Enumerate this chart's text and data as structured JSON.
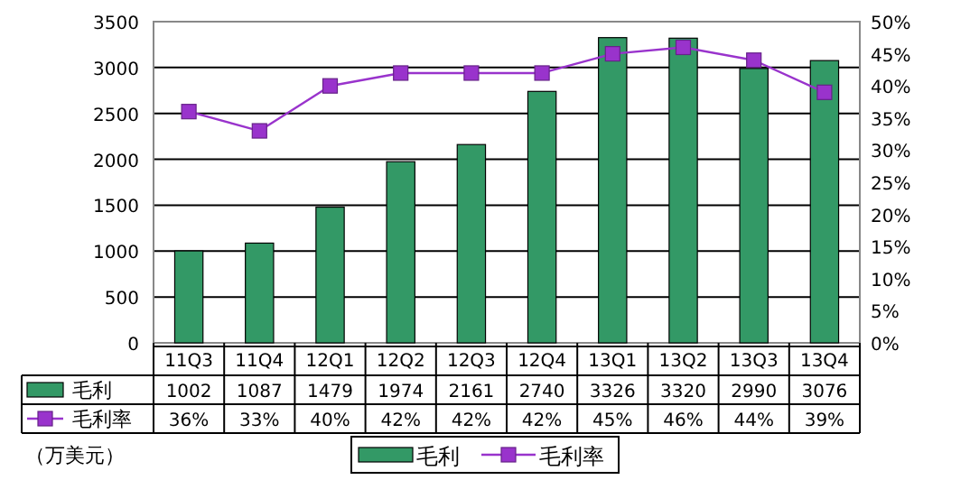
{
  "chart_data": {
    "type": "bar",
    "categories": [
      "11Q3",
      "11Q4",
      "12Q1",
      "12Q2",
      "12Q3",
      "12Q4",
      "13Q1",
      "13Q2",
      "13Q3",
      "13Q4"
    ],
    "series": [
      {
        "name": "毛利",
        "color": "#339966",
        "values": [
          1002,
          1087,
          1479,
          1974,
          2161,
          2740,
          3326,
          3320,
          2990,
          3076
        ],
        "value_labels": [
          "1002",
          "1087",
          "1479",
          "1974",
          "2161",
          "2740",
          "3326",
          "3320",
          "2990",
          "3076"
        ]
      },
      {
        "name": "毛利率",
        "type": "line",
        "axis": "y2",
        "color": "#9933cc",
        "values": [
          36,
          33,
          40,
          42,
          42,
          42,
          45,
          46,
          44,
          39
        ],
        "value_labels": [
          "36%",
          "33%",
          "40%",
          "42%",
          "42%",
          "42%",
          "45%",
          "46%",
          "44%",
          "39%"
        ]
      }
    ],
    "ylim": [
      0,
      3500
    ],
    "yticks": [
      0,
      500,
      1000,
      1500,
      2000,
      2500,
      3000,
      3500
    ],
    "y2lim": [
      0,
      50
    ],
    "y2ticks": [
      {
        "value": 0,
        "label": "0%"
      },
      {
        "value": 5,
        "label": "5%"
      },
      {
        "value": 10,
        "label": "10%"
      },
      {
        "value": 15,
        "label": "15%"
      },
      {
        "value": 20,
        "label": "20%"
      },
      {
        "value": 25,
        "label": "25%"
      },
      {
        "value": 30,
        "label": "30%"
      },
      {
        "value": 35,
        "label": "35%"
      },
      {
        "value": 40,
        "label": "40%"
      },
      {
        "value": 45,
        "label": "45%"
      },
      {
        "value": 50,
        "label": "50%"
      }
    ],
    "grid": "y",
    "legend": "bottom",
    "marker": "square",
    "annotations": [
      "（万美元）"
    ]
  }
}
